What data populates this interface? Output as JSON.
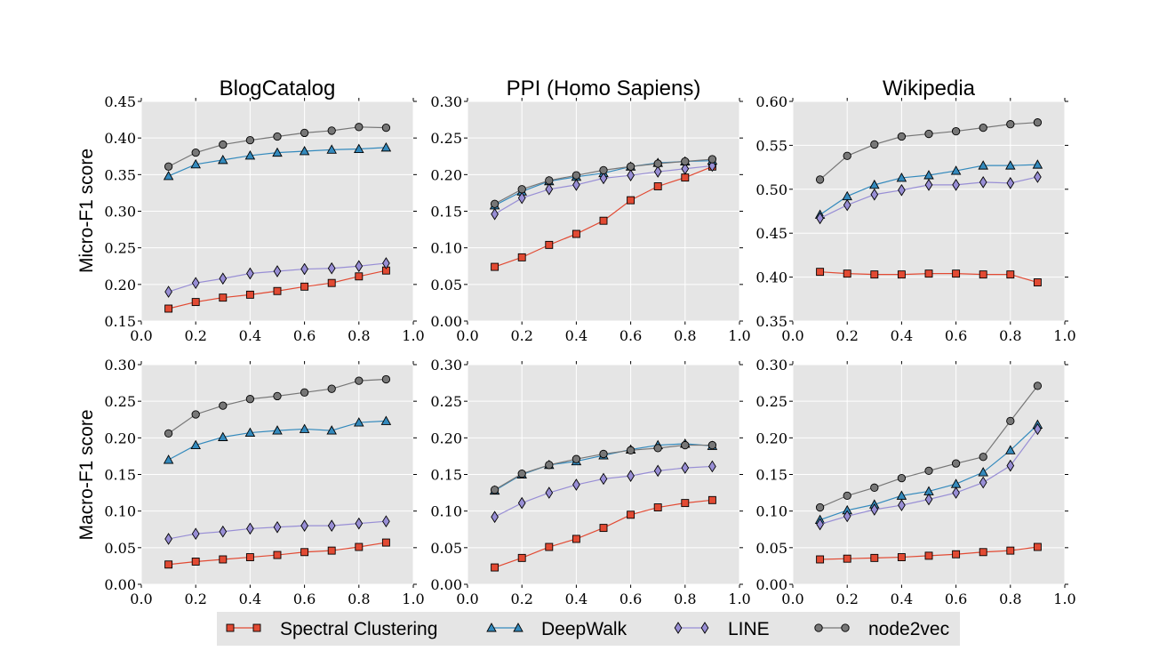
{
  "figure": {
    "row_labels": [
      "Micro-F1 score",
      "Macro-F1 score"
    ],
    "column_titles": [
      "BlogCatalog",
      "PPI (Homo Sapiens)",
      "Wikipedia"
    ],
    "colors": {
      "panel_bg": "#e5e5e5",
      "grid": "#ffffff",
      "legend_bg": "#e5e5e5"
    }
  },
  "legend": [
    {
      "name": "Spectral Clustering",
      "color": "#e24a33",
      "marker": "square"
    },
    {
      "name": "DeepWalk",
      "color": "#348abd",
      "marker": "triangle"
    },
    {
      "name": "LINE",
      "color": "#988ed5",
      "marker": "diamond"
    },
    {
      "name": "node2vec",
      "color": "#777777",
      "marker": "circle"
    }
  ],
  "chart_data": [
    {
      "type": "line",
      "title": "BlogCatalog",
      "ylabel": "Micro-F1 score",
      "xlim": [
        0.0,
        1.0
      ],
      "ylim": [
        0.15,
        0.45
      ],
      "xticks": [
        "0.0",
        "0.2",
        "0.4",
        "0.6",
        "0.8",
        "1.0"
      ],
      "yticks": [
        "0.15",
        "0.20",
        "0.25",
        "0.30",
        "0.35",
        "0.40",
        "0.45"
      ],
      "x": [
        0.1,
        0.2,
        0.3,
        0.4,
        0.5,
        0.6,
        0.7,
        0.8,
        0.9
      ],
      "series": [
        {
          "name": "Spectral Clustering",
          "values": [
            0.167,
            0.176,
            0.182,
            0.186,
            0.191,
            0.197,
            0.202,
            0.211,
            0.219
          ]
        },
        {
          "name": "DeepWalk",
          "values": [
            0.348,
            0.364,
            0.37,
            0.376,
            0.38,
            0.382,
            0.384,
            0.385,
            0.387
          ]
        },
        {
          "name": "LINE",
          "values": [
            0.19,
            0.202,
            0.208,
            0.215,
            0.218,
            0.221,
            0.222,
            0.225,
            0.229
          ]
        },
        {
          "name": "node2vec",
          "values": [
            0.361,
            0.38,
            0.391,
            0.397,
            0.402,
            0.407,
            0.41,
            0.415,
            0.414
          ]
        }
      ]
    },
    {
      "type": "line",
      "title": "PPI (Homo Sapiens)",
      "ylabel": "",
      "xlim": [
        0.0,
        1.0
      ],
      "ylim": [
        0.0,
        0.3
      ],
      "xticks": [
        "0.0",
        "0.2",
        "0.4",
        "0.6",
        "0.8",
        "1.0"
      ],
      "yticks": [
        "0.00",
        "0.05",
        "0.10",
        "0.15",
        "0.20",
        "0.25",
        "0.30"
      ],
      "x": [
        0.1,
        0.2,
        0.3,
        0.4,
        0.5,
        0.6,
        0.7,
        0.8,
        0.9
      ],
      "series": [
        {
          "name": "Spectral Clustering",
          "values": [
            0.074,
            0.087,
            0.104,
            0.119,
            0.137,
            0.165,
            0.184,
            0.196,
            0.211
          ]
        },
        {
          "name": "DeepWalk",
          "values": [
            0.158,
            0.177,
            0.191,
            0.197,
            0.202,
            0.211,
            0.216,
            0.218,
            0.219
          ]
        },
        {
          "name": "LINE",
          "values": [
            0.146,
            0.168,
            0.18,
            0.186,
            0.195,
            0.199,
            0.204,
            0.208,
            0.212
          ]
        },
        {
          "name": "node2vec",
          "values": [
            0.16,
            0.18,
            0.192,
            0.199,
            0.206,
            0.211,
            0.215,
            0.218,
            0.221
          ]
        }
      ]
    },
    {
      "type": "line",
      "title": "Wikipedia",
      "ylabel": "",
      "xlim": [
        0.0,
        1.0
      ],
      "ylim": [
        0.35,
        0.6
      ],
      "xticks": [
        "0.0",
        "0.2",
        "0.4",
        "0.6",
        "0.8",
        "1.0"
      ],
      "yticks": [
        "0.35",
        "0.40",
        "0.45",
        "0.50",
        "0.55",
        "0.60"
      ],
      "x": [
        0.1,
        0.2,
        0.3,
        0.4,
        0.5,
        0.6,
        0.7,
        0.8,
        0.9
      ],
      "series": [
        {
          "name": "Spectral Clustering",
          "values": [
            0.406,
            0.404,
            0.403,
            0.403,
            0.404,
            0.404,
            0.403,
            0.403,
            0.394
          ]
        },
        {
          "name": "DeepWalk",
          "values": [
            0.471,
            0.492,
            0.505,
            0.513,
            0.516,
            0.521,
            0.527,
            0.527,
            0.528
          ]
        },
        {
          "name": "LINE",
          "values": [
            0.467,
            0.482,
            0.494,
            0.499,
            0.505,
            0.505,
            0.508,
            0.507,
            0.514
          ]
        },
        {
          "name": "node2vec",
          "values": [
            0.511,
            0.538,
            0.551,
            0.56,
            0.563,
            0.566,
            0.57,
            0.574,
            0.576
          ]
        }
      ]
    },
    {
      "type": "line",
      "title": "",
      "ylabel": "Macro-F1 score",
      "xlim": [
        0.0,
        1.0
      ],
      "ylim": [
        0.0,
        0.3
      ],
      "xticks": [
        "0.0",
        "0.2",
        "0.4",
        "0.6",
        "0.8",
        "1.0"
      ],
      "yticks": [
        "0.00",
        "0.05",
        "0.10",
        "0.15",
        "0.20",
        "0.25",
        "0.30"
      ],
      "x": [
        0.1,
        0.2,
        0.3,
        0.4,
        0.5,
        0.6,
        0.7,
        0.8,
        0.9
      ],
      "series": [
        {
          "name": "Spectral Clustering",
          "values": [
            0.027,
            0.031,
            0.034,
            0.037,
            0.04,
            0.044,
            0.046,
            0.051,
            0.057
          ]
        },
        {
          "name": "DeepWalk",
          "values": [
            0.17,
            0.19,
            0.201,
            0.207,
            0.21,
            0.212,
            0.21,
            0.221,
            0.223
          ]
        },
        {
          "name": "LINE",
          "values": [
            0.062,
            0.069,
            0.072,
            0.076,
            0.078,
            0.08,
            0.08,
            0.083,
            0.086
          ]
        },
        {
          "name": "node2vec",
          "values": [
            0.206,
            0.232,
            0.244,
            0.253,
            0.257,
            0.262,
            0.267,
            0.278,
            0.28
          ]
        }
      ]
    },
    {
      "type": "line",
      "title": "",
      "ylabel": "",
      "xlim": [
        0.0,
        1.0
      ],
      "ylim": [
        0.0,
        0.3
      ],
      "xticks": [
        "0.0",
        "0.2",
        "0.4",
        "0.6",
        "0.8",
        "1.0"
      ],
      "yticks": [
        "0.00",
        "0.05",
        "0.10",
        "0.15",
        "0.20",
        "0.25",
        "0.30"
      ],
      "x": [
        0.1,
        0.2,
        0.3,
        0.4,
        0.5,
        0.6,
        0.7,
        0.8,
        0.9
      ],
      "series": [
        {
          "name": "Spectral Clustering",
          "values": [
            0.023,
            0.036,
            0.051,
            0.062,
            0.077,
            0.095,
            0.105,
            0.111,
            0.115
          ]
        },
        {
          "name": "DeepWalk",
          "values": [
            0.128,
            0.15,
            0.163,
            0.168,
            0.176,
            0.184,
            0.19,
            0.192,
            0.189
          ]
        },
        {
          "name": "LINE",
          "values": [
            0.092,
            0.111,
            0.125,
            0.136,
            0.144,
            0.148,
            0.155,
            0.159,
            0.161
          ]
        },
        {
          "name": "node2vec",
          "values": [
            0.129,
            0.151,
            0.163,
            0.171,
            0.178,
            0.183,
            0.186,
            0.19,
            0.19
          ]
        }
      ]
    },
    {
      "type": "line",
      "title": "",
      "ylabel": "",
      "xlim": [
        0.0,
        1.0
      ],
      "ylim": [
        0.0,
        0.3
      ],
      "xticks": [
        "0.0",
        "0.2",
        "0.4",
        "0.6",
        "0.8",
        "1.0"
      ],
      "yticks": [
        "0.00",
        "0.05",
        "0.10",
        "0.15",
        "0.20",
        "0.25",
        "0.30"
      ],
      "x": [
        0.1,
        0.2,
        0.3,
        0.4,
        0.5,
        0.6,
        0.7,
        0.8,
        0.9
      ],
      "series": [
        {
          "name": "Spectral Clustering",
          "values": [
            0.034,
            0.035,
            0.036,
            0.037,
            0.039,
            0.041,
            0.044,
            0.046,
            0.051
          ]
        },
        {
          "name": "DeepWalk",
          "values": [
            0.088,
            0.101,
            0.109,
            0.121,
            0.127,
            0.137,
            0.153,
            0.183,
            0.218
          ]
        },
        {
          "name": "LINE",
          "values": [
            0.082,
            0.093,
            0.102,
            0.108,
            0.116,
            0.125,
            0.139,
            0.162,
            0.212
          ]
        },
        {
          "name": "node2vec",
          "values": [
            0.105,
            0.121,
            0.132,
            0.145,
            0.155,
            0.165,
            0.174,
            0.223,
            0.271
          ]
        }
      ]
    }
  ]
}
